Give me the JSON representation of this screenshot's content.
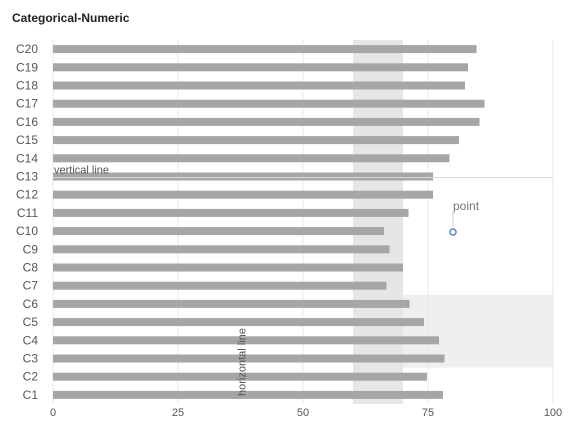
{
  "chart_data": {
    "type": "bar",
    "orientation": "horizontal",
    "title": "Categorical-Numeric",
    "categories": [
      "C1",
      "C2",
      "C3",
      "C4",
      "C5",
      "C6",
      "C7",
      "C8",
      "C9",
      "C10",
      "C11",
      "C12",
      "C13",
      "C14",
      "C15",
      "C16",
      "C17",
      "C18",
      "C19",
      "C20"
    ],
    "values": [
      78,
      74.8,
      78.3,
      77.2,
      74.2,
      71.3,
      66.7,
      70,
      67.3,
      66.2,
      71.1,
      76,
      76,
      79.3,
      81.2,
      85.3,
      86.3,
      82.4,
      83,
      84.7
    ],
    "xlim": [
      0,
      100
    ],
    "x_ticks": [
      0,
      25,
      50,
      75,
      100
    ],
    "grid": "vertical",
    "bar_color": "#a6a6a6",
    "annotations": {
      "vertical_band": {
        "x_from": 60,
        "x_to": 70,
        "color": "#e6e6e6"
      },
      "horizontal_band": {
        "from_category": "C3",
        "to_category": "C6",
        "x_from": 60,
        "x_to": 100,
        "color": "#efefef"
      },
      "vertical_line": {
        "x": 0,
        "label": "vertical line"
      },
      "horizontal_line": {
        "category": "C1",
        "label": "horizontal line"
      },
      "point": {
        "x": 80,
        "category": "C10",
        "label": "point",
        "color": "#5b8bd9"
      }
    }
  }
}
